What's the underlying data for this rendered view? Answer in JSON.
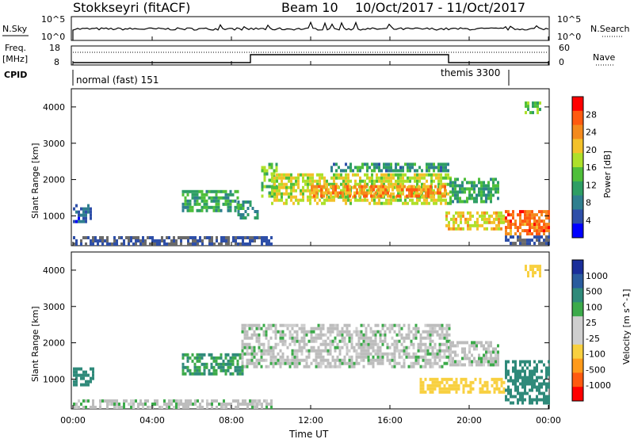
{
  "header": {
    "station": "Stokkseyri (fitACF)",
    "beam": "Beam 10",
    "daterange": "10/Oct/2017 - 11/Oct/2017"
  },
  "panels": {
    "nsky": {
      "left_label": "N.Sky",
      "right_label": "N.Search",
      "left_ticks": [
        "10^5",
        "10^0"
      ],
      "right_ticks": [
        "10^5",
        "10^0"
      ]
    },
    "freq": {
      "left_label_1": "Freq.",
      "left_label_2": "[MHz]",
      "left_ticks": [
        "18",
        "8"
      ],
      "right_ticks": [
        "60",
        "0"
      ],
      "right_label": "Nave"
    },
    "cpid": {
      "label": "CPID",
      "modes": [
        "normal (fast) 151",
        "themis 3300"
      ]
    }
  },
  "colors": {
    "power_scale": [
      "#0000ff",
      "#2e4fa8",
      "#2f7f8f",
      "#2e9e64",
      "#4fbf3a",
      "#aee02a",
      "#f3c12a",
      "#f48a1d",
      "#ff5a10",
      "#ff0000"
    ],
    "velocity_scale": [
      "#1a2e9a",
      "#2a5c9e",
      "#2f8a7a",
      "#3caa4a",
      "#cfcfcf",
      "#cfcfcf",
      "#f8d040",
      "#ff9a1a",
      "#ff5a10",
      "#ff0000"
    ],
    "ground": "#bdbdbd"
  },
  "chart_data": [
    {
      "type": "heatmap",
      "title": "Power",
      "ylabel": "Slant Range [km]",
      "ylim": [
        180,
        4500
      ],
      "xlim": [
        "00:00",
        "24:00"
      ],
      "x_ticks": [
        "00:00",
        "04:00",
        "08:00",
        "12:00",
        "16:00",
        "20:00",
        "00:00"
      ],
      "y_ticks": [
        1000,
        2000,
        3000,
        4000
      ],
      "colorbar": {
        "label": "Power [dB]",
        "ticks": [
          4,
          8,
          12,
          16,
          20,
          24,
          28
        ]
      },
      "regions": [
        {
          "t0": 0.0,
          "t1": 0.9,
          "r0": 800,
          "r1": 1300,
          "v": 6
        },
        {
          "t0": 0.0,
          "t1": 10.0,
          "r0": 180,
          "r1": 400,
          "v": 4
        },
        {
          "t0": 5.5,
          "t1": 8.3,
          "r0": 1100,
          "r1": 1700,
          "v": 12
        },
        {
          "t0": 8.3,
          "t1": 9.3,
          "r0": 900,
          "r1": 1400,
          "v": 10
        },
        {
          "t0": 9.5,
          "t1": 10.3,
          "r0": 1500,
          "r1": 2400,
          "v": 14
        },
        {
          "t0": 10.0,
          "t1": 19.0,
          "r0": 1300,
          "r1": 2100,
          "v": 18
        },
        {
          "t0": 12.0,
          "t1": 18.8,
          "r0": 1500,
          "r1": 1800,
          "v": 24
        },
        {
          "t0": 13.0,
          "t1": 19.0,
          "r0": 2200,
          "r1": 2450,
          "v": 10
        },
        {
          "t0": 19.0,
          "t1": 21.5,
          "r0": 1350,
          "r1": 2000,
          "v": 12
        },
        {
          "t0": 18.8,
          "t1": 21.8,
          "r0": 600,
          "r1": 1100,
          "v": 20
        },
        {
          "t0": 21.8,
          "t1": 24.0,
          "r0": 200,
          "r1": 1100,
          "v": 26
        },
        {
          "t0": 22.8,
          "t1": 23.6,
          "r0": 3800,
          "r1": 4100,
          "v": 14
        }
      ]
    },
    {
      "type": "heatmap",
      "title": "Velocity",
      "ylabel": "Slant Range [km]",
      "ylim": [
        180,
        4500
      ],
      "xlim": [
        "00:00",
        "24:00"
      ],
      "xlabel": "Time UT",
      "x_ticks": [
        "00:00",
        "04:00",
        "08:00",
        "12:00",
        "16:00",
        "20:00",
        "00:00"
      ],
      "y_ticks": [
        1000,
        2000,
        3000,
        4000
      ],
      "colorbar": {
        "label": "Velocity [m s^-1]",
        "ticks": [
          1000,
          500,
          100,
          25,
          -25,
          -100,
          -500,
          -1000
        ]
      },
      "regions": [
        {
          "t0": 0.0,
          "t1": 1.0,
          "r0": 800,
          "r1": 1300,
          "v": 300
        },
        {
          "t0": 0.0,
          "t1": 10.0,
          "r0": 180,
          "r1": 400,
          "v": 0
        },
        {
          "t0": 5.5,
          "t1": 8.5,
          "r0": 1100,
          "r1": 1700,
          "v": 100
        },
        {
          "t0": 8.5,
          "t1": 19.0,
          "r0": 1300,
          "r1": 2500,
          "v": 0
        },
        {
          "t0": 19.0,
          "t1": 21.5,
          "r0": 1350,
          "r1": 2000,
          "v": 0
        },
        {
          "t0": 17.5,
          "t1": 21.8,
          "r0": 600,
          "r1": 1000,
          "v": -400
        },
        {
          "t0": 21.8,
          "t1": 24.0,
          "r0": 300,
          "r1": 1500,
          "v": 200
        },
        {
          "t0": 22.8,
          "t1": 23.6,
          "r0": 3800,
          "r1": 4100,
          "v": -200
        }
      ]
    }
  ]
}
